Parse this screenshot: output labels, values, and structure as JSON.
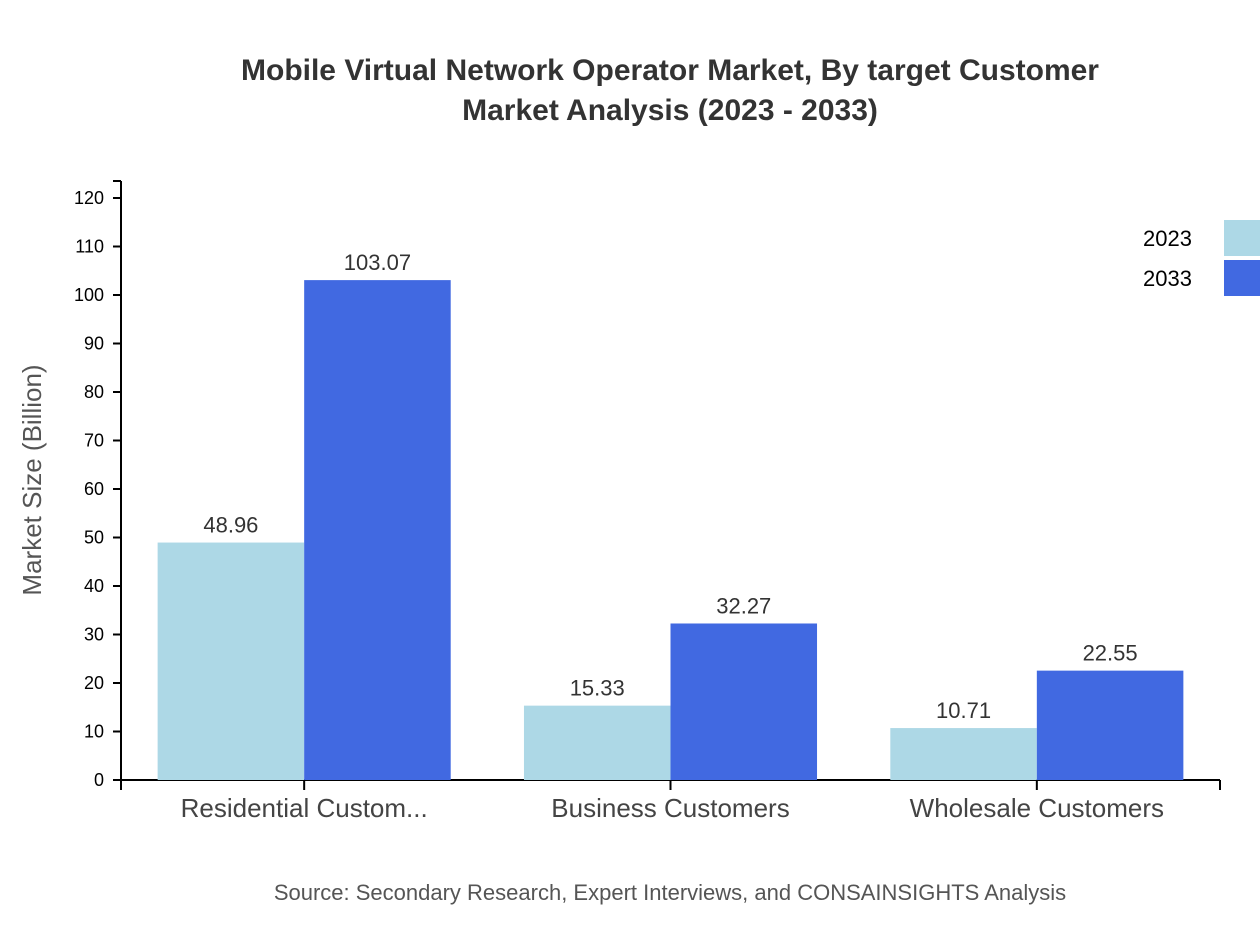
{
  "chart_data": {
    "type": "bar",
    "title": [
      "Mobile Virtual Network Operator Market, By target Customer",
      "Market Analysis (2023 - 2033)"
    ],
    "xlabel": "",
    "ylabel": "Market Size (Billion)",
    "ylim": [
      0,
      120
    ],
    "yticks": [
      0,
      10,
      20,
      30,
      40,
      50,
      60,
      70,
      80,
      90,
      100,
      110,
      120
    ],
    "categories": [
      "Residential Custom...",
      "Business Customers",
      "Wholesale Customers"
    ],
    "series": [
      {
        "name": "2023",
        "color": "#add8e6",
        "values": [
          48.96,
          15.33,
          10.71
        ]
      },
      {
        "name": "2033",
        "color": "#4169e1",
        "values": [
          103.07,
          32.27,
          22.55
        ]
      }
    ],
    "legend_position": "top-right",
    "grid": false,
    "source": "Source: Secondary Research, Expert Interviews, and CONSAINSIGHTS Analysis"
  }
}
